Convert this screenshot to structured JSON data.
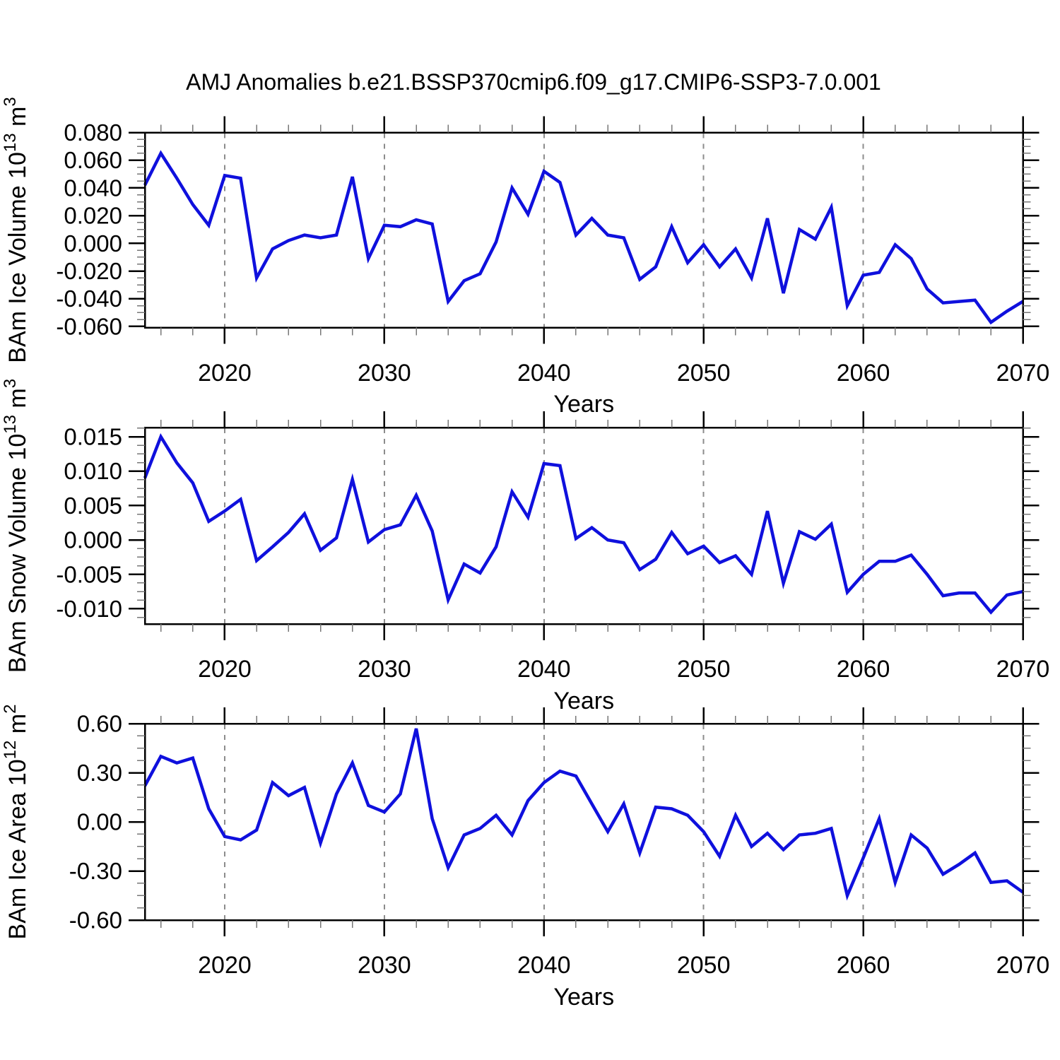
{
  "title": "AMJ Anomalies b.e21.BSSP370cmip6.f09_g17.CMIP6-SSP3-7.0.001",
  "colors": {
    "line": "#0f10dd",
    "grid": "#8c8c8c",
    "axis": "#000000",
    "minor_tick": "#777777"
  },
  "chart_data": [
    {
      "type": "line",
      "id": "ice-volume",
      "xlabel": "Years",
      "ylabel_segments": [
        {
          "t": "BAm Ice Volume 10"
        },
        {
          "t": "13",
          "sup": true
        },
        {
          "t": " m"
        },
        {
          "t": "3",
          "sup": true
        }
      ],
      "x_start": 2015,
      "x_end": 2070,
      "xticks_major": [
        2020,
        2030,
        2040,
        2050,
        2060,
        2070
      ],
      "xminor_step": 2,
      "grid_decades": [
        2020,
        2030,
        2040,
        2050,
        2060
      ],
      "ylim": [
        -0.0608,
        0.08
      ],
      "yticks": {
        "values": [
          0.08,
          0.06,
          0.04,
          0.02,
          0.0,
          -0.02,
          -0.04,
          -0.06
        ],
        "labels": [
          "0.080",
          "0.060",
          "0.040",
          "0.020",
          "0.000",
          "-0.020",
          "-0.040",
          "-0.060"
        ]
      },
      "yminor_step": 0.005,
      "years": [
        2015,
        2016,
        2017,
        2018,
        2019,
        2020,
        2021,
        2022,
        2023,
        2024,
        2025,
        2026,
        2027,
        2028,
        2029,
        2030,
        2031,
        2032,
        2033,
        2034,
        2035,
        2036,
        2037,
        2038,
        2039,
        2040,
        2041,
        2042,
        2043,
        2044,
        2045,
        2046,
        2047,
        2048,
        2049,
        2050,
        2051,
        2052,
        2053,
        2054,
        2055,
        2056,
        2057,
        2058,
        2059,
        2060,
        2061,
        2062,
        2063,
        2064,
        2065,
        2066,
        2067,
        2068,
        2069,
        2070
      ],
      "values": [
        0.042,
        0.065,
        0.047,
        0.028,
        0.013,
        0.049,
        0.047,
        -0.025,
        -0.004,
        0.002,
        0.006,
        0.004,
        0.006,
        0.048,
        -0.011,
        0.013,
        0.012,
        0.017,
        0.014,
        -0.042,
        -0.027,
        -0.022,
        0.001,
        0.04,
        0.021,
        0.052,
        0.044,
        0.006,
        0.018,
        0.006,
        0.004,
        -0.026,
        -0.017,
        0.012,
        -0.014,
        -0.001,
        -0.017,
        -0.004,
        -0.025,
        0.018,
        -0.036,
        0.01,
        0.003,
        0.026,
        -0.045,
        -0.023,
        -0.021,
        -0.001,
        -0.011,
        -0.033,
        -0.043,
        -0.042,
        -0.041,
        -0.057,
        -0.049,
        -0.042
      ]
    },
    {
      "type": "line",
      "id": "snow-volume",
      "xlabel": "Years",
      "ylabel_segments": [
        {
          "t": "BAm Snow Volume 10"
        },
        {
          "t": "13",
          "sup": true
        },
        {
          "t": " m"
        },
        {
          "t": "3",
          "sup": true
        }
      ],
      "x_start": 2015,
      "x_end": 2070,
      "xticks_major": [
        2020,
        2030,
        2040,
        2050,
        2060,
        2070
      ],
      "xminor_step": 2,
      "grid_decades": [
        2020,
        2030,
        2040,
        2050,
        2060
      ],
      "ylim": [
        -0.01221,
        0.016335
      ],
      "yticks": {
        "values": [
          0.015,
          0.01,
          0.005,
          0.0,
          -0.005,
          -0.01
        ],
        "labels": [
          "0.015",
          "0.010",
          "0.005",
          "0.000",
          "-0.005",
          "-0.010"
        ]
      },
      "yminor_step": 0.00125,
      "years": [
        2015,
        2016,
        2017,
        2018,
        2019,
        2020,
        2021,
        2022,
        2023,
        2024,
        2025,
        2026,
        2027,
        2028,
        2029,
        2030,
        2031,
        2032,
        2033,
        2034,
        2035,
        2036,
        2037,
        2038,
        2039,
        2040,
        2041,
        2042,
        2043,
        2044,
        2045,
        2046,
        2047,
        2048,
        2049,
        2050,
        2051,
        2052,
        2053,
        2054,
        2055,
        2056,
        2057,
        2058,
        2059,
        2060,
        2061,
        2062,
        2063,
        2064,
        2065,
        2066,
        2067,
        2068,
        2069,
        2070
      ],
      "values": [
        0.009,
        0.015,
        0.0112,
        0.0083,
        0.0027,
        0.0042,
        0.0059,
        -0.003,
        -0.001,
        0.0011,
        0.0038,
        -0.0015,
        0.0003,
        0.0088,
        -0.0003,
        0.0015,
        0.0022,
        0.0065,
        0.0013,
        -0.0087,
        -0.0035,
        -0.0048,
        -0.001,
        0.007,
        0.0033,
        0.0111,
        0.0108,
        0.0002,
        0.0018,
        0.0,
        -0.0004,
        -0.0043,
        -0.0028,
        0.0011,
        -0.002,
        -0.0009,
        -0.0033,
        -0.0023,
        -0.005,
        0.0042,
        -0.0063,
        0.0012,
        0.0001,
        0.0023,
        -0.0076,
        -0.005,
        -0.0031,
        -0.0031,
        -0.0022,
        -0.005,
        -0.0081,
        -0.0077,
        -0.0077,
        -0.0105,
        -0.008,
        -0.0075
      ]
    },
    {
      "type": "line",
      "id": "ice-area",
      "xlabel": "Years",
      "ylabel_segments": [
        {
          "t": "BAm Ice Area 10"
        },
        {
          "t": "12",
          "sup": true
        },
        {
          "t": " m"
        },
        {
          "t": "2",
          "sup": true
        }
      ],
      "x_start": 2015,
      "x_end": 2070,
      "xticks_major": [
        2020,
        2030,
        2040,
        2050,
        2060,
        2070
      ],
      "xminor_step": 2,
      "grid_decades": [
        2020,
        2030,
        2040,
        2050,
        2060
      ],
      "ylim": [
        -0.6,
        0.6
      ],
      "yticks": {
        "values": [
          0.6,
          0.3,
          0.0,
          -0.3,
          -0.6
        ],
        "labels": [
          "0.60",
          "0.30",
          "0.00",
          "-0.30",
          "-0.60"
        ]
      },
      "yminor_step": 0.075,
      "years": [
        2015,
        2016,
        2017,
        2018,
        2019,
        2020,
        2021,
        2022,
        2023,
        2024,
        2025,
        2026,
        2027,
        2028,
        2029,
        2030,
        2031,
        2032,
        2033,
        2034,
        2035,
        2036,
        2037,
        2038,
        2039,
        2040,
        2041,
        2042,
        2043,
        2044,
        2045,
        2046,
        2047,
        2048,
        2049,
        2050,
        2051,
        2052,
        2053,
        2054,
        2055,
        2056,
        2057,
        2058,
        2059,
        2060,
        2061,
        2062,
        2063,
        2064,
        2065,
        2066,
        2067,
        2068,
        2069,
        2070
      ],
      "values": [
        0.22,
        0.4,
        0.36,
        0.39,
        0.08,
        -0.09,
        -0.11,
        -0.05,
        0.24,
        0.16,
        0.21,
        -0.13,
        0.17,
        0.36,
        0.1,
        0.06,
        0.17,
        0.57,
        0.02,
        -0.28,
        -0.08,
        -0.04,
        0.04,
        -0.08,
        0.13,
        0.24,
        0.31,
        0.28,
        0.11,
        -0.06,
        0.11,
        -0.19,
        0.09,
        0.08,
        0.04,
        -0.06,
        -0.21,
        0.04,
        -0.15,
        -0.07,
        -0.17,
        -0.08,
        -0.07,
        -0.04,
        -0.45,
        -0.22,
        0.02,
        -0.37,
        -0.08,
        -0.16,
        -0.32,
        -0.26,
        -0.19,
        -0.37,
        -0.36,
        -0.43
      ]
    }
  ]
}
